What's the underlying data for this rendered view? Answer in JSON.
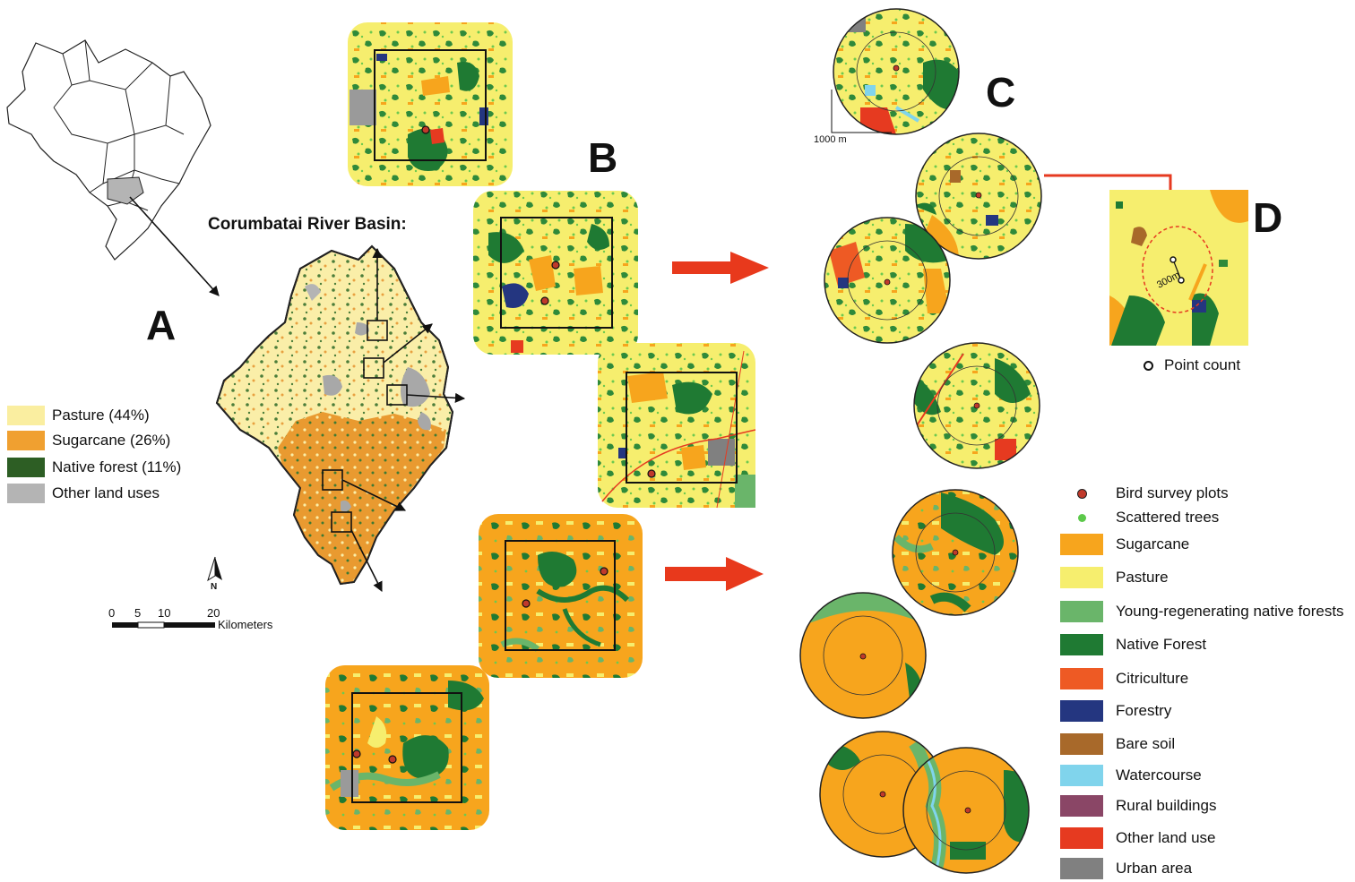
{
  "panels": {
    "a": "A",
    "b": "B",
    "c": "C",
    "d": "D"
  },
  "basin_title": "Corumbatai River Basin:",
  "legend_a": [
    {
      "label": "Pasture (44%)",
      "color": "#faeea0"
    },
    {
      "label": "Sugarcane (26%)",
      "color": "#f0a030"
    },
    {
      "label": "Native forest (11%)",
      "color": "#2d5e24"
    },
    {
      "label": "Other land uses",
      "color": "#b4b4b4"
    }
  ],
  "scale_bar": {
    "ticks": [
      "0",
      "5",
      "10",
      "20"
    ],
    "unit": "Kilometers"
  },
  "north_label": "N",
  "inset_c_scale": "1000 m",
  "inset_d_radius": "300m",
  "point_count_label": "Point count",
  "legend_right": {
    "markers": [
      {
        "label": "Bird survey plots",
        "color": "#c0392b"
      },
      {
        "label": "Scattered trees",
        "color": "#5cc94a"
      }
    ],
    "classes": [
      {
        "label": "Sugarcane",
        "color": "#f7a51d"
      },
      {
        "label": "Pasture",
        "color": "#f6ee6e"
      },
      {
        "label": "Young-regenerating native forests",
        "color": "#6ab56a"
      },
      {
        "label": "Native Forest",
        "color": "#1f7a33"
      },
      {
        "label": "Citriculture",
        "color": "#ee5a24"
      },
      {
        "label": "Forestry",
        "color": "#243680"
      },
      {
        "label": "Bare soil",
        "color": "#a8692a"
      },
      {
        "label": "Watercourse",
        "color": "#80d4ec"
      },
      {
        "label": "Rural buildings",
        "color": "#8a4666"
      },
      {
        "label": "Other land use",
        "color": "#e63a20"
      },
      {
        "label": "Urban area",
        "color": "#808080"
      }
    ]
  }
}
